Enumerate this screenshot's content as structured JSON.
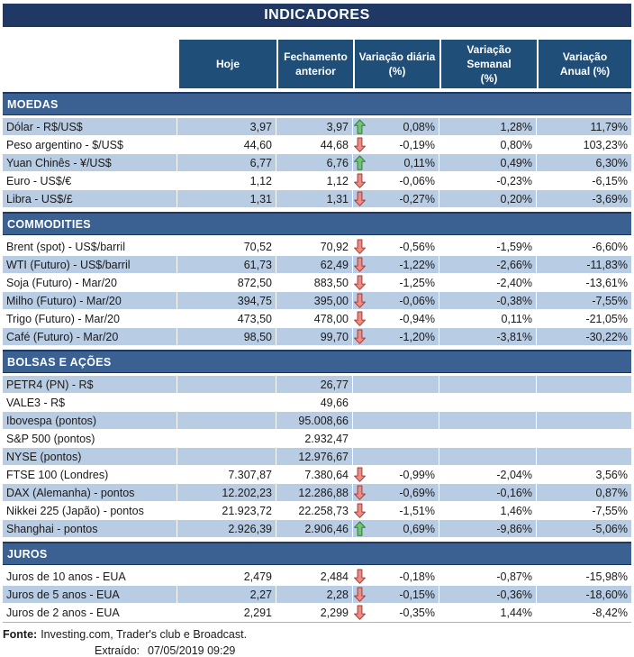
{
  "title": "INDICADORES",
  "columns": [
    "Hoje",
    "Fechamento\nanterior",
    "Variação diária\n(%)",
    "Variação Semanal\n(%)",
    "Variação\nAnual (%)"
  ],
  "colors": {
    "title_navy": "#1F3864",
    "header_blue": "#1F4E79",
    "section_blue": "#3A6191",
    "stripe_blue": "#B8CCE4",
    "up_arrow_green": "#72C472",
    "down_arrow_red": "#EC8C84"
  },
  "sections": [
    {
      "id": "moedas",
      "name": "MOEDAS",
      "rows": [
        {
          "label": "Dólar - R$/US$",
          "hoje": "3,97",
          "fechamento": "3,97",
          "arrow": "up",
          "var_diaria": "0,08%",
          "var_semanal": "1,28%",
          "var_anual": "11,79%"
        },
        {
          "label": "Peso argentino - $/US$",
          "hoje": "44,60",
          "fechamento": "44,68",
          "arrow": "down",
          "var_diaria": "-0,19%",
          "var_semanal": "0,80%",
          "var_anual": "103,23%"
        },
        {
          "label": "Yuan Chinês - ¥/US$",
          "hoje": "6,77",
          "fechamento": "6,76",
          "arrow": "up",
          "var_diaria": "0,11%",
          "var_semanal": "0,49%",
          "var_anual": "6,30%"
        },
        {
          "label": "Euro - US$/€",
          "hoje": "1,12",
          "fechamento": "1,12",
          "arrow": "down",
          "var_diaria": "-0,06%",
          "var_semanal": "-0,23%",
          "var_anual": "-6,15%"
        },
        {
          "label": "Libra - US$/£",
          "hoje": "1,31",
          "fechamento": "1,31",
          "arrow": "down",
          "var_diaria": "-0,27%",
          "var_semanal": "0,20%",
          "var_anual": "-3,69%"
        }
      ]
    },
    {
      "id": "commodities",
      "name": "COMMODITIES",
      "rows": [
        {
          "label": "Brent (spot) - US$/barril",
          "hoje": "70,52",
          "fechamento": "70,92",
          "arrow": "down",
          "var_diaria": "-0,56%",
          "var_semanal": "-1,59%",
          "var_anual": "-6,60%"
        },
        {
          "label": "WTI (Futuro) - US$/barril",
          "hoje": "61,73",
          "fechamento": "62,49",
          "arrow": "down",
          "var_diaria": "-1,22%",
          "var_semanal": "-2,66%",
          "var_anual": "-11,83%"
        },
        {
          "label": "Soja (Futuro) - Mar/20",
          "hoje": "872,50",
          "fechamento": "883,50",
          "arrow": "down",
          "var_diaria": "-1,25%",
          "var_semanal": "-2,40%",
          "var_anual": "-13,61%"
        },
        {
          "label": "Milho (Futuro) - Mar/20",
          "hoje": "394,75",
          "fechamento": "395,00",
          "arrow": "down",
          "var_diaria": "-0,06%",
          "var_semanal": "-0,38%",
          "var_anual": "-7,55%"
        },
        {
          "label": "Trigo (Futuro) - Mar/20",
          "hoje": "473,50",
          "fechamento": "478,00",
          "arrow": "down",
          "var_diaria": "-0,94%",
          "var_semanal": "0,11%",
          "var_anual": "-21,05%"
        },
        {
          "label": "Café (Futuro) - Mar/20",
          "hoje": "98,50",
          "fechamento": "99,70",
          "arrow": "down",
          "var_diaria": "-1,20%",
          "var_semanal": "-3,81%",
          "var_anual": "-30,22%"
        }
      ]
    },
    {
      "id": "bolsas-e-acoes",
      "name": "BOLSAS E AÇÕES",
      "rows": [
        {
          "label": "PETR4 (PN) - R$",
          "hoje": "",
          "fechamento": "26,77",
          "arrow": "",
          "var_diaria": "",
          "var_semanal": "",
          "var_anual": ""
        },
        {
          "label": "VALE3 - R$",
          "hoje": "",
          "fechamento": "49,66",
          "arrow": "",
          "var_diaria": "",
          "var_semanal": "",
          "var_anual": ""
        },
        {
          "label": "Ibovespa (pontos)",
          "hoje": "",
          "fechamento": "95.008,66",
          "arrow": "",
          "var_diaria": "",
          "var_semanal": "",
          "var_anual": ""
        },
        {
          "label": "S&P 500 (pontos)",
          "hoje": "",
          "fechamento": "2.932,47",
          "arrow": "",
          "var_diaria": "",
          "var_semanal": "",
          "var_anual": ""
        },
        {
          "label": "NYSE (pontos)",
          "hoje": "",
          "fechamento": "12.976,67",
          "arrow": "",
          "var_diaria": "",
          "var_semanal": "",
          "var_anual": ""
        },
        {
          "label": "FTSE 100 (Londres)",
          "hoje": "7.307,87",
          "fechamento": "7.380,64",
          "arrow": "down",
          "var_diaria": "-0,99%",
          "var_semanal": "-2,04%",
          "var_anual": "3,56%"
        },
        {
          "label": "DAX (Alemanha) - pontos",
          "hoje": "12.202,23",
          "fechamento": "12.286,88",
          "arrow": "down",
          "var_diaria": "-0,69%",
          "var_semanal": "-0,16%",
          "var_anual": "0,87%"
        },
        {
          "label": "Nikkei 225 (Japão) - pontos",
          "hoje": "21.923,72",
          "fechamento": "22.258,73",
          "arrow": "down",
          "var_diaria": "-1,51%",
          "var_semanal": "1,46%",
          "var_anual": "-7,55%"
        },
        {
          "label": "Shanghai - pontos",
          "hoje": "2.926,39",
          "fechamento": "2.906,46",
          "arrow": "up",
          "var_diaria": "0,69%",
          "var_semanal": "-9,86%",
          "var_anual": "-5,06%"
        }
      ]
    },
    {
      "id": "juros",
      "name": "JUROS",
      "rows": [
        {
          "label": "Juros de 10 anos - EUA",
          "hoje": "2,479",
          "fechamento": "2,484",
          "arrow": "down",
          "var_diaria": "-0,18%",
          "var_semanal": "-0,87%",
          "var_anual": "-15,98%"
        },
        {
          "label": "Juros de 5 anos - EUA",
          "hoje": "2,27",
          "fechamento": "2,28",
          "arrow": "down",
          "var_diaria": "-0,15%",
          "var_semanal": "-0,36%",
          "var_anual": "-18,60%"
        },
        {
          "label": "Juros de 2 anos - EUA",
          "hoje": "2,291",
          "fechamento": "2,299",
          "arrow": "down",
          "var_diaria": "-0,35%",
          "var_semanal": "1,44%",
          "var_anual": "-8,42%"
        }
      ]
    }
  ],
  "footer": {
    "fonte_label": "Fonte:",
    "fonte_text": "Investing.com, Trader's club e Broadcast.",
    "extraido_label": "Extraído:",
    "extraido_value": "07/05/2019 09:29"
  }
}
